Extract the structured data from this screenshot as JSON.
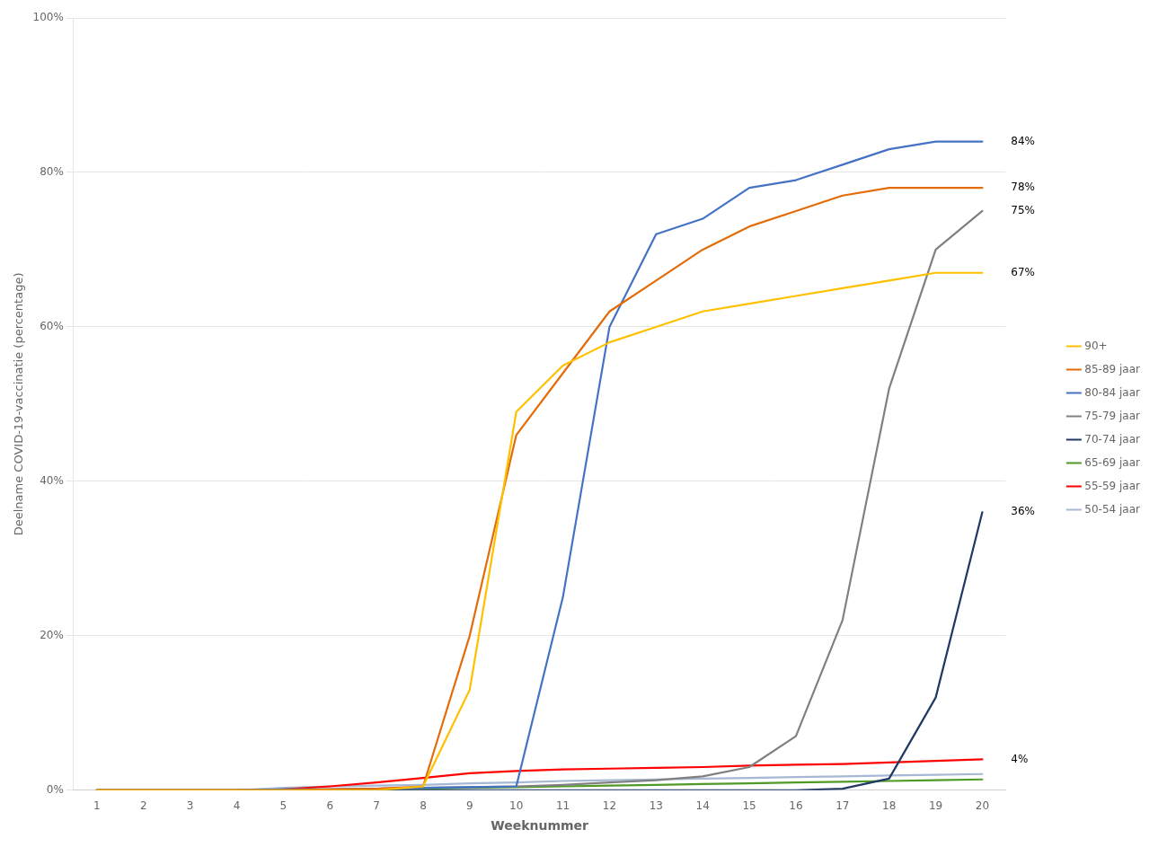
{
  "chart_data": {
    "type": "line",
    "x_label": "Weeknummer",
    "y_label": "Deelname COVID-19-vaccinatie (percentage)",
    "x": [
      1,
      2,
      3,
      4,
      5,
      6,
      7,
      8,
      9,
      10,
      11,
      12,
      13,
      14,
      15,
      16,
      17,
      18,
      19,
      20
    ],
    "xlim": [
      0.5,
      20.5
    ],
    "xticks": [
      1,
      2,
      3,
      4,
      5,
      6,
      7,
      8,
      9,
      10,
      11,
      12,
      13,
      14,
      15,
      16,
      17,
      18,
      19,
      20
    ],
    "ylim": [
      0.0,
      1.0
    ],
    "yticks": [
      {
        "value": 0.0,
        "label": "0%"
      },
      {
        "value": 0.2,
        "label": "20%"
      },
      {
        "value": 0.4,
        "label": "40%"
      },
      {
        "value": 0.6,
        "label": "60%"
      },
      {
        "value": 0.8,
        "label": "80%"
      },
      {
        "value": 1.0,
        "label": "100%"
      }
    ],
    "grid": "y",
    "legend": "right",
    "series": [
      {
        "name": "90+",
        "color": "#FFC000",
        "values": [
          0.0,
          0.0,
          0.0,
          0.0,
          0.0,
          0.0,
          0.0,
          0.005,
          0.13,
          0.49,
          0.55,
          0.58,
          0.6,
          0.62,
          0.63,
          0.64,
          0.65,
          0.66,
          0.67,
          0.67
        ]
      },
      {
        "name": "85-89 jaar",
        "color": "#E36C09",
        "values": [
          0.0,
          0.0,
          0.0,
          0.0,
          0.0,
          0.001,
          0.002,
          0.005,
          0.2,
          0.46,
          0.54,
          0.62,
          0.66,
          0.7,
          0.73,
          0.75,
          0.77,
          0.78,
          0.78,
          0.78
        ]
      },
      {
        "name": "80-84 jaar",
        "color": "#4472C4",
        "values": [
          0.0,
          0.0,
          0.0,
          0.0,
          0.001,
          0.001,
          0.002,
          0.003,
          0.004,
          0.005,
          0.25,
          0.6,
          0.72,
          0.74,
          0.78,
          0.79,
          0.81,
          0.83,
          0.84,
          0.84
        ]
      },
      {
        "name": "75-79 jaar",
        "color": "#808080",
        "values": [
          0.0,
          0.0,
          0.0,
          0.0,
          0.001,
          0.001,
          0.002,
          0.003,
          0.004,
          0.005,
          0.007,
          0.01,
          0.013,
          0.018,
          0.03,
          0.07,
          0.22,
          0.52,
          0.7,
          0.75
        ]
      },
      {
        "name": "70-74 jaar",
        "color": "#1F3864",
        "values": [
          0.0,
          0.0,
          0.0,
          0.0,
          0.0,
          0.0,
          0.0,
          0.0,
          0.0,
          0.0,
          0.0,
          0.0,
          0.0,
          0.0,
          0.0,
          0.0,
          0.002,
          0.015,
          0.12,
          0.36
        ]
      },
      {
        "name": "65-69 jaar",
        "color": "#4E9A24",
        "values": [
          0.0,
          0.0,
          0.0,
          0.0,
          0.0,
          0.0,
          0.001,
          0.002,
          0.003,
          0.004,
          0.005,
          0.006,
          0.007,
          0.008,
          0.009,
          0.01,
          0.011,
          0.012,
          0.013,
          0.014
        ]
      },
      {
        "name": "55-59 jaar",
        "color": "#FF0000",
        "values": [
          0.0,
          0.0,
          0.0,
          0.0,
          0.001,
          0.005,
          0.01,
          0.016,
          0.022,
          0.025,
          0.027,
          0.028,
          0.029,
          0.03,
          0.032,
          0.033,
          0.034,
          0.036,
          0.038,
          0.04
        ]
      },
      {
        "name": "50-54 jaar",
        "color": "#A6B8D4",
        "values": [
          0.0,
          0.0,
          0.0,
          0.0,
          0.003,
          0.005,
          0.006,
          0.007,
          0.009,
          0.01,
          0.012,
          0.013,
          0.014,
          0.015,
          0.016,
          0.017,
          0.018,
          0.019,
          0.02,
          0.021
        ]
      }
    ],
    "annotations": [
      {
        "text": "84%",
        "y": 0.84
      },
      {
        "text": "78%",
        "y": 0.78
      },
      {
        "text": "75%",
        "y": 0.75
      },
      {
        "text": "67%",
        "y": 0.67
      },
      {
        "text": "36%",
        "y": 0.36
      },
      {
        "text": "4%",
        "y": 0.04
      }
    ]
  }
}
